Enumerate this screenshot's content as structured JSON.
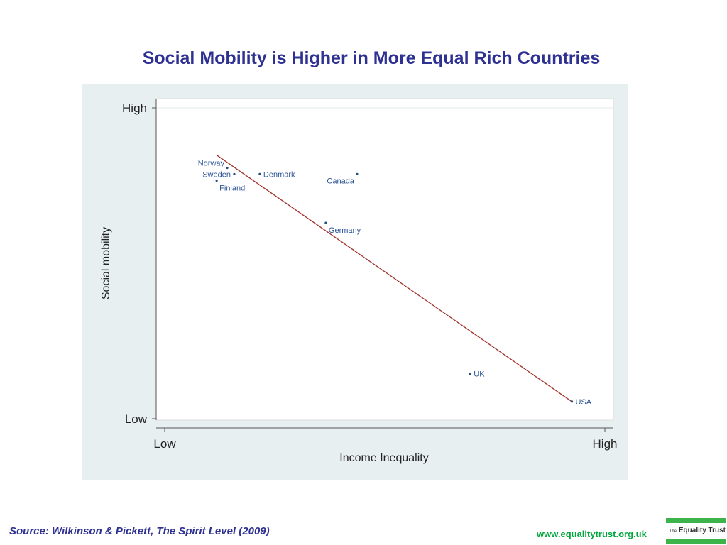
{
  "slide": {
    "title": "Social Mobility is Higher in More Equal Rich Countries",
    "source": "Source: Wilkinson & Pickett, The Spirit Level (2009)",
    "website": "www.equalitytrust.org.uk",
    "logo": {
      "prefix": "The",
      "name": "Equality Trust"
    }
  },
  "chart_data": {
    "type": "scatter",
    "title": "",
    "xlabel": "Income Inequality",
    "ylabel": "Social mobility",
    "x_ticks": [
      {
        "value": 0,
        "label": "Low"
      },
      {
        "value": 1,
        "label": "High"
      }
    ],
    "y_ticks": [
      {
        "value": 0,
        "label": "Low"
      },
      {
        "value": 1,
        "label": "High"
      }
    ],
    "xlim": [
      -0.03,
      1.02
    ],
    "ylim": [
      0,
      1
    ],
    "grid": false,
    "points": [
      {
        "label": "Norway",
        "x": 0.142,
        "y": 0.807,
        "label_pos": "left-above"
      },
      {
        "label": "Sweden",
        "x": 0.158,
        "y": 0.787,
        "label_pos": "left"
      },
      {
        "label": "Finland",
        "x": 0.118,
        "y": 0.766,
        "label_pos": "right-below"
      },
      {
        "label": "Denmark",
        "x": 0.216,
        "y": 0.787,
        "label_pos": "right"
      },
      {
        "label": "Canada",
        "x": 0.437,
        "y": 0.787,
        "label_pos": "left-below"
      },
      {
        "label": "Germany",
        "x": 0.366,
        "y": 0.63,
        "label_pos": "right-below"
      },
      {
        "label": "UK",
        "x": 0.694,
        "y": 0.145,
        "label_pos": "right"
      },
      {
        "label": "USA",
        "x": 0.925,
        "y": 0.055,
        "label_pos": "right"
      }
    ],
    "fit_line": {
      "x": [
        0.118,
        0.925
      ],
      "y": [
        0.848,
        0.055
      ],
      "color": "#a0332b"
    },
    "colors": {
      "points": "#1f4e79",
      "labels": "#2f5597",
      "axis": "#555555",
      "plot_background": "#ffffff",
      "panel_background": "#e8eff1"
    }
  }
}
